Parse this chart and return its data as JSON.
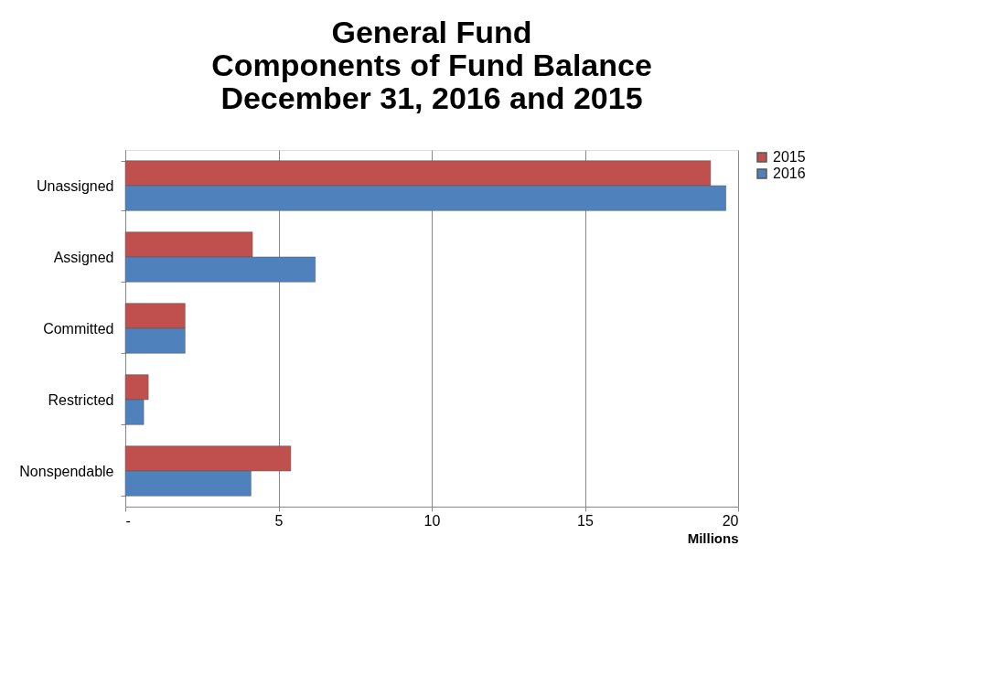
{
  "chart_data": {
    "type": "bar",
    "orientation": "horizontal",
    "title": [
      "General Fund",
      "Components of Fund Balance",
      "December 31, 2016 and 2015"
    ],
    "xlabel": "Millions",
    "categories": [
      "Unassigned",
      "Assigned",
      "Committed",
      "Restricted",
      "Nonspendable"
    ],
    "series": [
      {
        "name": "2015",
        "color": "#c0504d",
        "values": [
          19.1,
          4.15,
          1.95,
          0.75,
          5.4
        ]
      },
      {
        "name": "2016",
        "color": "#4f81bd",
        "values": [
          19.6,
          6.2,
          1.95,
          0.6,
          4.1
        ]
      }
    ],
    "xlim": [
      0,
      20
    ],
    "xticks": [
      {
        "value": 0,
        "label": "-"
      },
      5,
      10,
      15,
      20
    ],
    "grid": "x",
    "legend": "right"
  }
}
